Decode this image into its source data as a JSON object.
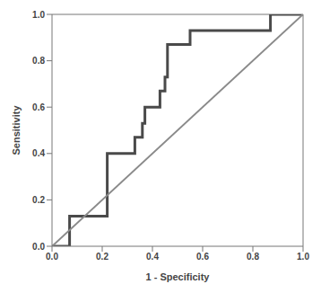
{
  "chart_data": {
    "type": "line",
    "x_label": "1 - Specificity",
    "y_label": "Sensitivity",
    "xlim": [
      0,
      1
    ],
    "ylim": [
      0,
      1
    ],
    "xticks": [
      {
        "value": 0,
        "label": "0.0"
      },
      0.2,
      0.4,
      0.6,
      0.8,
      {
        "value": 1,
        "label": "1.0"
      }
    ],
    "yticks": [
      {
        "value": 0,
        "label": "0.0"
      },
      0.2,
      0.4,
      0.6,
      0.8,
      {
        "value": 1,
        "label": "1.0"
      }
    ],
    "grid": false,
    "series": [
      {
        "color": "#4a4a4a",
        "x": [
          0,
          0.07,
          0.07,
          0.22,
          0.22,
          0.33,
          0.33,
          0.36,
          0.36,
          0.37,
          0.37,
          0.43,
          0.43,
          0.45,
          0.45,
          0.46,
          0.46,
          0.55,
          0.55,
          0.87,
          0.87,
          1.0
        ],
        "values": [
          0,
          0,
          0.13,
          0.13,
          0.4,
          0.4,
          0.47,
          0.47,
          0.53,
          0.53,
          0.6,
          0.6,
          0.67,
          0.67,
          0.73,
          0.73,
          0.87,
          0.87,
          0.93,
          0.93,
          1.0,
          1.0
        ]
      },
      {
        "color": "#8a8a8a",
        "x": [
          0,
          1
        ],
        "values": [
          0,
          1
        ]
      }
    ]
  }
}
